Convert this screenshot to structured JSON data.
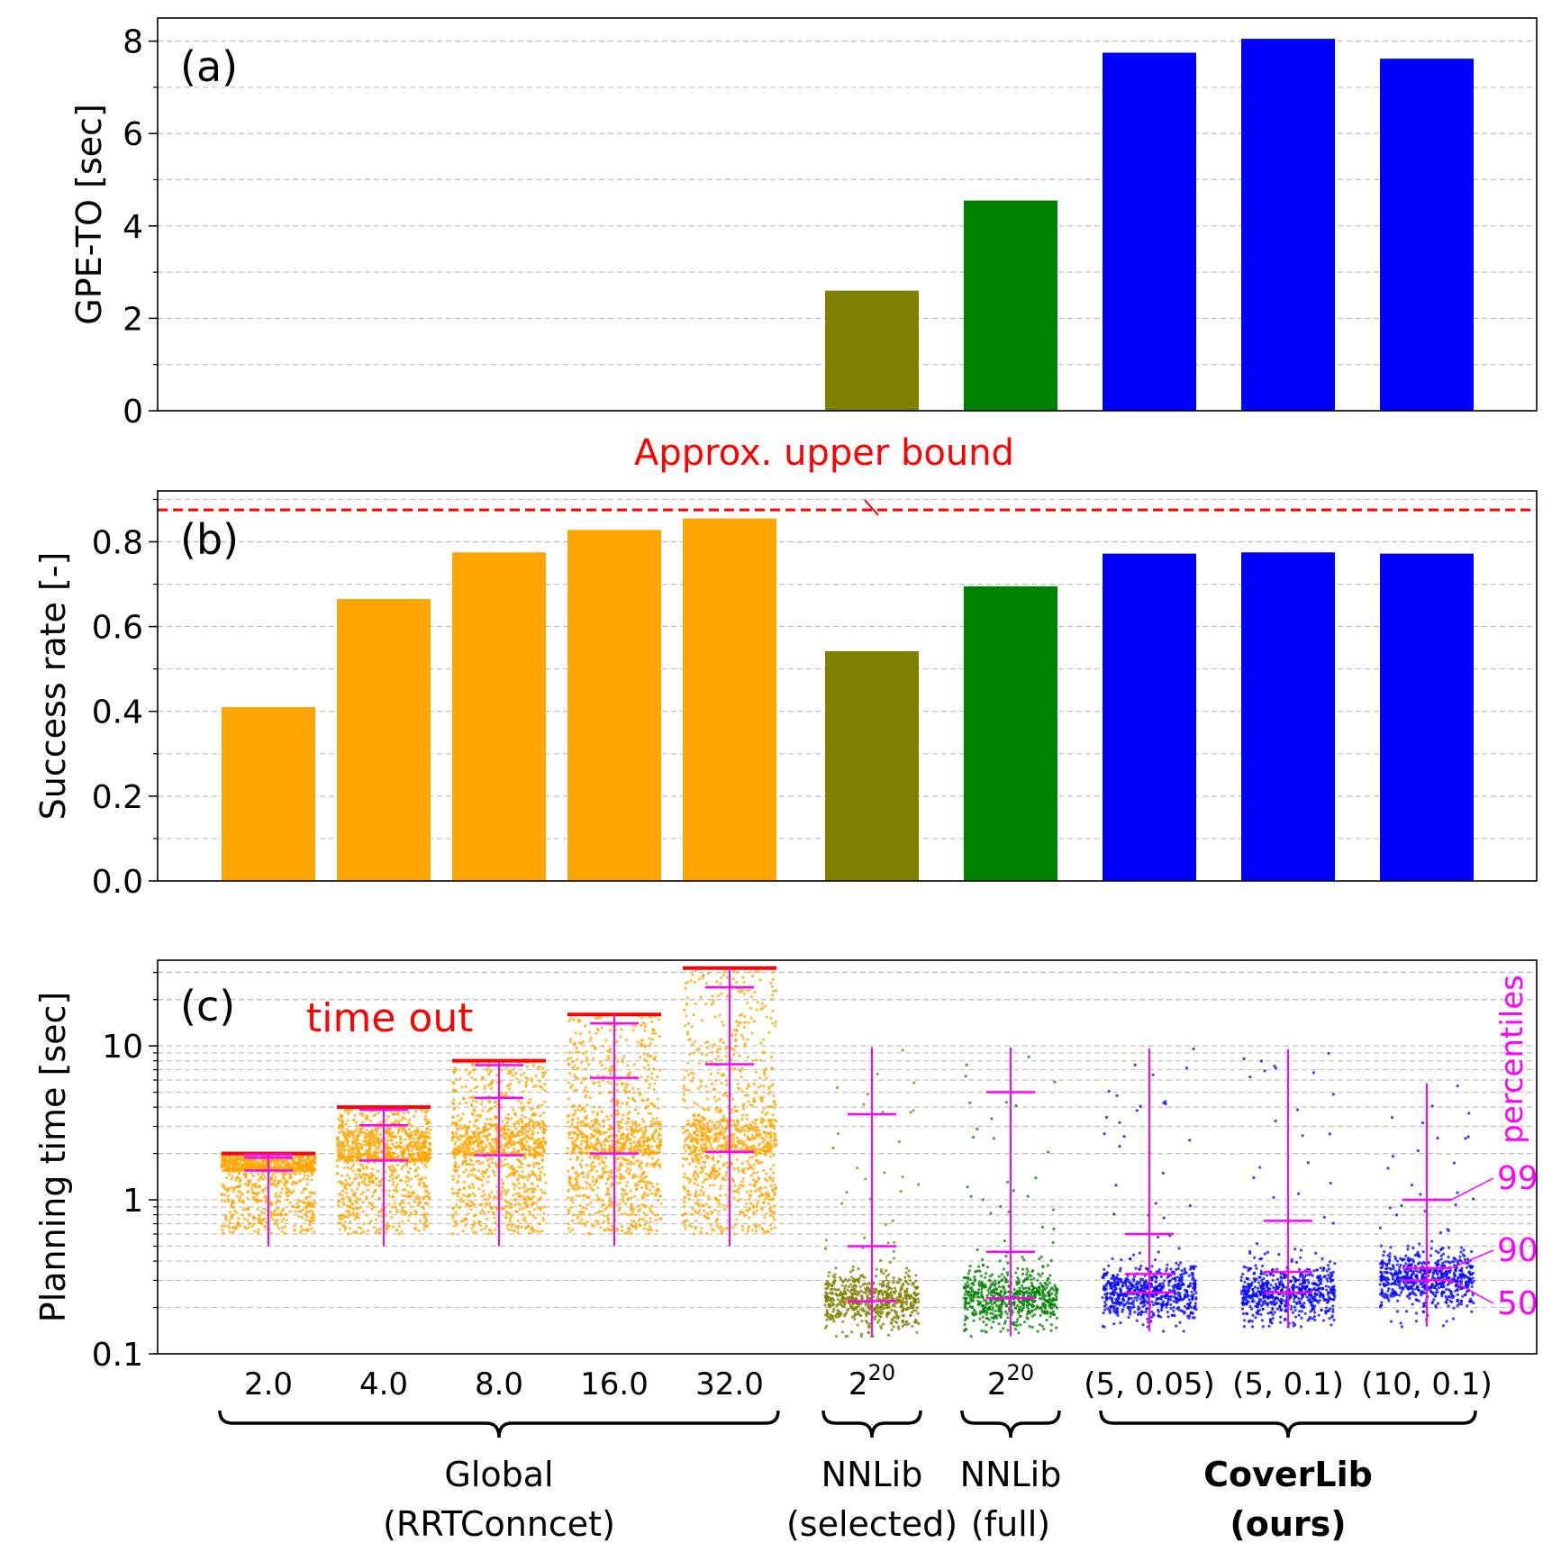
{
  "chart_data": [
    {
      "type": "bar",
      "panel_label": "(a)",
      "ylabel": "GPE-TO [sec]",
      "ylim": [
        0,
        8.5
      ],
      "yticks": [
        0,
        2,
        4,
        6,
        8
      ],
      "grid": true,
      "bars": [
        {
          "slot": 5,
          "value": 2.6,
          "color": "#808000"
        },
        {
          "slot": 6,
          "value": 4.55,
          "color": "#008000"
        },
        {
          "slot": 7,
          "value": 7.75,
          "color": "#0000ff"
        },
        {
          "slot": 8,
          "value": 8.05,
          "color": "#0000ff"
        },
        {
          "slot": 9,
          "value": 7.62,
          "color": "#0000ff"
        }
      ]
    },
    {
      "type": "bar",
      "panel_label": "(b)",
      "ylabel": "Success rate [-]",
      "ylim": [
        0,
        0.92
      ],
      "yticks": [
        0.0,
        0.2,
        0.4,
        0.6,
        0.8
      ],
      "grid": true,
      "reference_line": {
        "value": 0.875,
        "label": "Approx. upper bound",
        "color": "#ff0000"
      },
      "bars": [
        {
          "slot": 0,
          "value": 0.41,
          "color": "#ffa500"
        },
        {
          "slot": 1,
          "value": 0.665,
          "color": "#ffa500"
        },
        {
          "slot": 2,
          "value": 0.775,
          "color": "#ffa500"
        },
        {
          "slot": 3,
          "value": 0.828,
          "color": "#ffa500"
        },
        {
          "slot": 4,
          "value": 0.855,
          "color": "#ffa500"
        },
        {
          "slot": 5,
          "value": 0.542,
          "color": "#808000"
        },
        {
          "slot": 6,
          "value": 0.695,
          "color": "#008000"
        },
        {
          "slot": 7,
          "value": 0.772,
          "color": "#0000ff"
        },
        {
          "slot": 8,
          "value": 0.775,
          "color": "#0000ff"
        },
        {
          "slot": 9,
          "value": 0.772,
          "color": "#0000ff"
        }
      ]
    },
    {
      "type": "scatter",
      "panel_label": "(c)",
      "ylabel": "Planning time [sec]",
      "yscale": "log",
      "ylim": [
        0.1,
        36
      ],
      "yticks": [
        0.1,
        1,
        10
      ],
      "ytick_labels": [
        "0.1",
        "1",
        "10"
      ],
      "grid": true,
      "timeout_label": "time out",
      "percentile_title": "percentiles",
      "percentile_labels": [
        "99",
        "90",
        "50"
      ],
      "groups": [
        {
          "slot": 0,
          "color": "#ffa500",
          "timeout": 2.0,
          "min": 0.5,
          "p50": 1.55,
          "p90": 1.88,
          "p99": 1.97,
          "max": 2.0
        },
        {
          "slot": 1,
          "color": "#ffa500",
          "timeout": 4.0,
          "min": 0.5,
          "p50": 1.8,
          "p90": 3.05,
          "p99": 3.85,
          "max": 4.0
        },
        {
          "slot": 2,
          "color": "#ffa500",
          "timeout": 8.0,
          "min": 0.5,
          "p50": 1.95,
          "p90": 4.6,
          "p99": 7.5,
          "max": 8.0
        },
        {
          "slot": 3,
          "color": "#ffa500",
          "timeout": 16.0,
          "min": 0.5,
          "p50": 2.0,
          "p90": 6.2,
          "p99": 14.0,
          "max": 16.0
        },
        {
          "slot": 4,
          "color": "#ffa500",
          "timeout": 32.0,
          "min": 0.5,
          "p50": 2.05,
          "p90": 7.6,
          "p99": 24.0,
          "max": 32.0
        },
        {
          "slot": 5,
          "color": "#808000",
          "min": 0.13,
          "p50": 0.22,
          "p90": 0.5,
          "p99": 3.6,
          "max": 9.8
        },
        {
          "slot": 6,
          "color": "#008000",
          "min": 0.13,
          "p50": 0.23,
          "p90": 0.46,
          "p99": 5.0,
          "max": 9.8
        },
        {
          "slot": 7,
          "color": "#0000ff",
          "min": 0.14,
          "p50": 0.25,
          "p90": 0.33,
          "p99": 0.6,
          "max": 9.6
        },
        {
          "slot": 8,
          "color": "#0000ff",
          "min": 0.15,
          "p50": 0.25,
          "p90": 0.34,
          "p99": 0.73,
          "max": 9.5
        },
        {
          "slot": 9,
          "color": "#0000ff",
          "min": 0.15,
          "p50": 0.3,
          "p90": 0.36,
          "p99": 1.0,
          "max": 5.7
        }
      ]
    }
  ],
  "x_tick_labels": [
    {
      "slot": 0,
      "text": "2.0"
    },
    {
      "slot": 1,
      "text": "4.0"
    },
    {
      "slot": 2,
      "text": "8.0"
    },
    {
      "slot": 3,
      "text": "16.0"
    },
    {
      "slot": 4,
      "text": "32.0"
    },
    {
      "slot": 5,
      "text": "2",
      "sup": "20"
    },
    {
      "slot": 6,
      "text": "2",
      "sup": "20"
    },
    {
      "slot": 7,
      "text": "(5, 0.05)"
    },
    {
      "slot": 8,
      "text": "(5, 0.1)"
    },
    {
      "slot": 9,
      "text": "(10, 0.1)"
    }
  ],
  "group_labels": [
    {
      "from": 0,
      "to": 4,
      "lines": [
        "Global",
        "(RRTConncet)"
      ],
      "bold": false
    },
    {
      "from": 5,
      "to": 5,
      "lines": [
        "NNLib",
        "(selected)"
      ],
      "bold": false
    },
    {
      "from": 6,
      "to": 6,
      "lines": [
        "NNLib",
        "(full)"
      ],
      "bold": false
    },
    {
      "from": 7,
      "to": 9,
      "lines": [
        "CoverLib",
        "(ours)"
      ],
      "bold": true
    }
  ]
}
